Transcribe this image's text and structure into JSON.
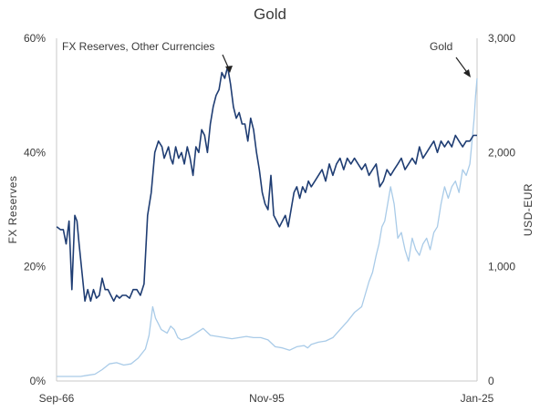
{
  "chart_data": {
    "type": "line",
    "title": "Gold",
    "ylabel_left": "FX  Reserves",
    "ylabel_right": "USD-EUR",
    "xlim": [
      1966.67,
      2025.0
    ],
    "ylim_left": [
      0,
      60
    ],
    "ylim_right": [
      0,
      3000
    ],
    "x_ticks": [
      "Sep-66",
      "Nov-95",
      "Jan-25"
    ],
    "y_left_ticks": [
      "0%",
      "20%",
      "40%",
      "60%"
    ],
    "y_right_ticks": [
      "0",
      "1,000",
      "2,000",
      "3,000"
    ],
    "grid": false,
    "colors": {
      "fx": "#1f3d73",
      "gold": "#a9cbe8"
    },
    "annotations": [
      {
        "text": "FX Reserves, Other Currencies",
        "arrow_to": [
          1990.0,
          53
        ]
      },
      {
        "text": "Gold",
        "arrow_to": [
          2024.5,
          2660
        ]
      }
    ],
    "series": [
      {
        "key": "fx",
        "axis": "left",
        "x": [
          1966.7,
          1967.2,
          1967.6,
          1968.0,
          1968.4,
          1968.8,
          1969.2,
          1969.5,
          1969.8,
          1970.2,
          1970.6,
          1971.0,
          1971.4,
          1971.8,
          1972.2,
          1972.6,
          1973.0,
          1973.4,
          1973.8,
          1974.2,
          1974.6,
          1975.0,
          1975.4,
          1975.8,
          1976.3,
          1976.8,
          1977.3,
          1977.8,
          1978.3,
          1978.8,
          1979.3,
          1979.8,
          1980.3,
          1980.8,
          1981.3,
          1981.6,
          1981.9,
          1982.2,
          1982.5,
          1982.8,
          1983.2,
          1983.6,
          1984.0,
          1984.4,
          1984.8,
          1985.2,
          1985.6,
          1986.0,
          1986.4,
          1986.8,
          1987.2,
          1987.6,
          1988.0,
          1988.4,
          1988.8,
          1989.2,
          1989.6,
          1990.0,
          1990.4,
          1990.8,
          1991.2,
          1991.6,
          1992.0,
          1992.4,
          1992.8,
          1993.2,
          1993.6,
          1994.0,
          1994.4,
          1994.8,
          1995.2,
          1995.6,
          1996.0,
          1996.4,
          1996.8,
          1997.2,
          1997.6,
          1998.0,
          1998.4,
          1998.8,
          1999.2,
          1999.6,
          2000.0,
          2000.4,
          2000.8,
          2001.2,
          2001.6,
          2002.0,
          2002.5,
          2003.0,
          2003.5,
          2004.0,
          2004.5,
          2005.0,
          2005.5,
          2006.0,
          2006.5,
          2007.0,
          2007.5,
          2008.0,
          2008.5,
          2009.0,
          2009.5,
          2010.0,
          2010.5,
          2011.0,
          2011.5,
          2012.0,
          2012.5,
          2013.0,
          2013.5,
          2014.0,
          2014.5,
          2015.0,
          2015.5,
          2016.0,
          2016.5,
          2017.0,
          2017.5,
          2018.0,
          2018.5,
          2019.0,
          2019.5,
          2020.0,
          2020.5,
          2021.0,
          2021.5,
          2022.0,
          2022.5,
          2023.0,
          2023.5,
          2024.0,
          2024.5,
          2025.0
        ],
        "values": [
          27,
          26.5,
          26.5,
          24,
          28,
          16,
          29,
          28,
          24,
          19,
          14,
          16,
          14,
          16,
          14.5,
          15,
          18,
          16,
          16,
          15,
          14,
          15,
          14.5,
          15,
          15,
          14.5,
          16,
          16,
          15,
          17,
          29,
          33,
          40,
          42,
          41,
          39,
          40,
          41,
          39,
          38,
          41,
          39,
          40,
          38,
          41,
          39,
          36,
          41,
          40,
          44,
          43,
          40,
          45,
          48,
          50,
          51,
          54,
          53,
          55,
          52,
          48,
          46,
          47,
          45,
          45,
          42,
          46,
          44,
          40,
          37,
          33,
          31,
          30,
          36,
          29,
          28,
          27,
          28,
          29,
          27,
          30,
          33,
          34,
          32,
          34,
          33,
          35,
          34,
          35,
          36,
          37,
          35,
          38,
          36,
          38,
          39,
          37,
          39,
          38,
          39,
          38,
          37,
          38,
          36,
          37,
          38,
          34,
          35,
          37,
          36,
          37,
          38,
          39,
          37,
          38,
          39,
          38,
          41,
          39,
          40,
          41,
          42,
          40,
          42,
          41,
          42,
          41,
          43,
          42,
          41,
          42,
          42,
          43,
          43
        ],
        "name": ""
      },
      {
        "key": "gold",
        "axis": "right",
        "x": [
          1966.7,
          1968.0,
          1970.0,
          1971.0,
          1972.0,
          1973.0,
          1974.0,
          1975.0,
          1976.0,
          1977.0,
          1978.0,
          1979.0,
          1979.5,
          1980.0,
          1980.4,
          1980.8,
          1981.2,
          1982.0,
          1982.5,
          1983.0,
          1983.5,
          1984.0,
          1985.0,
          1986.0,
          1987.0,
          1988.0,
          1989.0,
          1990.0,
          1991.0,
          1992.0,
          1993.0,
          1994.0,
          1995.0,
          1996.0,
          1997.0,
          1998.0,
          1999.0,
          2000.0,
          2001.0,
          2001.5,
          2002.0,
          2003.0,
          2004.0,
          2005.0,
          2006.0,
          2007.0,
          2008.0,
          2009.0,
          2010.0,
          2010.5,
          2011.0,
          2011.4,
          2011.8,
          2012.2,
          2012.6,
          2013.0,
          2013.5,
          2014.0,
          2014.5,
          2015.0,
          2015.5,
          2016.0,
          2016.5,
          2017.0,
          2017.5,
          2018.0,
          2018.5,
          2019.0,
          2019.5,
          2020.0,
          2020.5,
          2021.0,
          2021.5,
          2022.0,
          2022.5,
          2023.0,
          2023.5,
          2024.0,
          2024.3,
          2024.6,
          2024.8,
          2025.0
        ],
        "values": [
          40,
          40,
          40,
          50,
          60,
          100,
          150,
          160,
          140,
          150,
          200,
          280,
          400,
          650,
          550,
          500,
          450,
          420,
          480,
          450,
          380,
          360,
          380,
          420,
          460,
          400,
          390,
          380,
          370,
          380,
          390,
          380,
          380,
          360,
          300,
          290,
          270,
          300,
          310,
          290,
          320,
          340,
          350,
          380,
          450,
          520,
          600,
          650,
          870,
          950,
          1100,
          1200,
          1350,
          1400,
          1550,
          1700,
          1550,
          1250,
          1300,
          1150,
          1050,
          1250,
          1150,
          1100,
          1200,
          1250,
          1150,
          1300,
          1350,
          1550,
          1700,
          1600,
          1700,
          1750,
          1650,
          1850,
          1800,
          1900,
          2100,
          2300,
          2500,
          2650
        ],
        "name": ""
      }
    ]
  }
}
